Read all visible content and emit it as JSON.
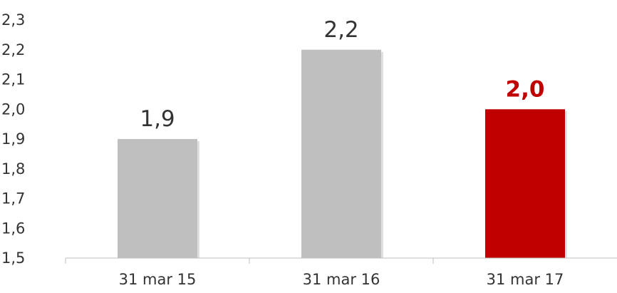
{
  "chart_data": {
    "type": "bar",
    "title": "",
    "xlabel": "",
    "ylabel": "",
    "categories": [
      "31 mar 15",
      "31 mar 16",
      "31 mar 17"
    ],
    "values": [
      1.9,
      2.2,
      2.0
    ],
    "value_labels": [
      "1,9",
      "2,2",
      "2,0"
    ],
    "y_ticks": [
      "1,5",
      "1,6",
      "1,7",
      "1,8",
      "1,9",
      "2,0",
      "2,1",
      "2,2",
      "2,3"
    ],
    "ylim": [
      1.5,
      2.3
    ],
    "grid": false,
    "legend": "none",
    "colors": {
      "default_bar": "#bfbfbf",
      "highlight_bar": "#c00000",
      "highlight_label": "#c00000",
      "text": "#333333",
      "axis": "#bfbfbf"
    },
    "highlight_index": 2
  }
}
